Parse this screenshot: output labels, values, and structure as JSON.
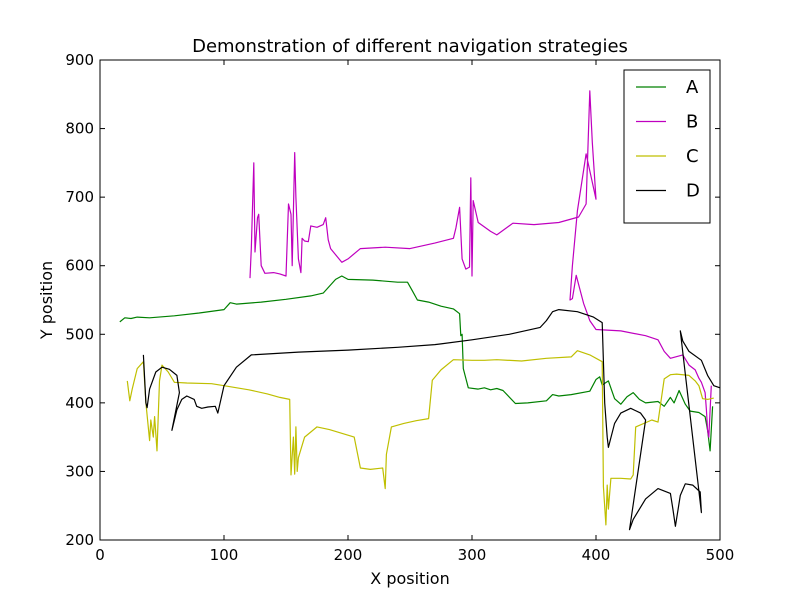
{
  "chart_data": {
    "type": "line",
    "title": "Demonstration of different navigation strategies",
    "xlabel": "X position",
    "ylabel": "Y position",
    "xlim": [
      0,
      500
    ],
    "ylim": [
      200,
      900
    ],
    "xticks": [
      0,
      100,
      200,
      300,
      400,
      500
    ],
    "yticks": [
      200,
      300,
      400,
      500,
      600,
      700,
      800,
      900
    ],
    "grid": false,
    "legend_position": "top-right",
    "series": [
      {
        "name": "A",
        "color": "#008000",
        "points": [
          [
            16,
            518
          ],
          [
            20,
            524
          ],
          [
            25,
            523
          ],
          [
            30,
            525
          ],
          [
            40,
            524
          ],
          [
            60,
            527
          ],
          [
            80,
            531
          ],
          [
            100,
            536
          ],
          [
            105,
            546
          ],
          [
            110,
            544
          ],
          [
            130,
            547
          ],
          [
            150,
            551
          ],
          [
            170,
            556
          ],
          [
            180,
            560
          ],
          [
            190,
            580
          ],
          [
            195,
            585
          ],
          [
            200,
            580
          ],
          [
            220,
            579
          ],
          [
            240,
            576
          ],
          [
            248,
            576
          ],
          [
            252,
            563
          ],
          [
            256,
            550
          ],
          [
            265,
            547
          ],
          [
            275,
            541
          ],
          [
            285,
            537
          ],
          [
            290,
            530
          ],
          [
            291,
            498
          ],
          [
            292,
            500
          ],
          [
            293,
            450
          ],
          [
            297,
            422
          ],
          [
            305,
            420
          ],
          [
            310,
            422
          ],
          [
            315,
            419
          ],
          [
            320,
            421
          ],
          [
            325,
            418
          ],
          [
            335,
            399
          ],
          [
            345,
            400
          ],
          [
            360,
            403
          ],
          [
            365,
            412
          ],
          [
            370,
            410
          ],
          [
            380,
            412
          ],
          [
            395,
            417
          ],
          [
            400,
            434
          ],
          [
            403,
            438
          ],
          [
            405,
            426
          ],
          [
            410,
            432
          ],
          [
            415,
            406
          ],
          [
            420,
            398
          ],
          [
            425,
            409
          ],
          [
            430,
            415
          ],
          [
            435,
            405
          ],
          [
            440,
            400
          ],
          [
            450,
            402
          ],
          [
            455,
            395
          ],
          [
            460,
            408
          ],
          [
            463,
            400
          ],
          [
            467,
            418
          ],
          [
            472,
            398
          ],
          [
            476,
            388
          ],
          [
            483,
            386
          ],
          [
            488,
            380
          ],
          [
            490,
            360
          ],
          [
            492,
            330
          ],
          [
            494,
            395
          ]
        ]
      },
      {
        "name": "B",
        "color": "#bf00bf",
        "points": [
          [
            121,
            582
          ],
          [
            122,
            625
          ],
          [
            124,
            750
          ],
          [
            125,
            620
          ],
          [
            127,
            670
          ],
          [
            128,
            675
          ],
          [
            130,
            600
          ],
          [
            133,
            589
          ],
          [
            140,
            590
          ],
          [
            145,
            588
          ],
          [
            150,
            585
          ],
          [
            152,
            690
          ],
          [
            154,
            675
          ],
          [
            155,
            600
          ],
          [
            157,
            765
          ],
          [
            158,
            700
          ],
          [
            160,
            610
          ],
          [
            162,
            590
          ],
          [
            163,
            640
          ],
          [
            165,
            636
          ],
          [
            168,
            635
          ],
          [
            170,
            658
          ],
          [
            175,
            656
          ],
          [
            180,
            660
          ],
          [
            182,
            670
          ],
          [
            184,
            638
          ],
          [
            186,
            625
          ],
          [
            195,
            605
          ],
          [
            200,
            610
          ],
          [
            210,
            625
          ],
          [
            230,
            627
          ],
          [
            250,
            625
          ],
          [
            270,
            633
          ],
          [
            285,
            640
          ],
          [
            287,
            655
          ],
          [
            290,
            685
          ],
          [
            292,
            610
          ],
          [
            295,
            595
          ],
          [
            298,
            598
          ],
          [
            299,
            728
          ],
          [
            300,
            585
          ],
          [
            301,
            695
          ],
          [
            305,
            663
          ],
          [
            315,
            650
          ],
          [
            320,
            645
          ],
          [
            330,
            658
          ],
          [
            333,
            662
          ],
          [
            350,
            660
          ],
          [
            370,
            663
          ],
          [
            386,
            671
          ],
          [
            392,
            690
          ],
          [
            395,
            855
          ],
          [
            397,
            780
          ],
          [
            400,
            697
          ],
          [
            392,
            763
          ],
          [
            385,
            680
          ],
          [
            381,
            600
          ],
          [
            379,
            550
          ],
          [
            381,
            552
          ],
          [
            384,
            586
          ],
          [
            390,
            545
          ],
          [
            395,
            520
          ],
          [
            400,
            507
          ],
          [
            420,
            505
          ],
          [
            440,
            498
          ],
          [
            450,
            492
          ],
          [
            455,
            475
          ],
          [
            460,
            465
          ],
          [
            470,
            470
          ],
          [
            475,
            455
          ],
          [
            480,
            448
          ],
          [
            483,
            436
          ],
          [
            485,
            430
          ],
          [
            488,
            415
          ],
          [
            489,
            390
          ],
          [
            490,
            360
          ],
          [
            491,
            350
          ],
          [
            493,
            425
          ]
        ]
      },
      {
        "name": "C",
        "color": "#bfbf00",
        "points": [
          [
            22,
            432
          ],
          [
            24,
            403
          ],
          [
            26,
            420
          ],
          [
            30,
            450
          ],
          [
            35,
            460
          ],
          [
            37,
            400
          ],
          [
            40,
            345
          ],
          [
            41,
            375
          ],
          [
            43,
            350
          ],
          [
            44,
            380
          ],
          [
            46,
            330
          ],
          [
            48,
            432
          ],
          [
            50,
            455
          ],
          [
            55,
            445
          ],
          [
            60,
            430
          ],
          [
            70,
            429
          ],
          [
            90,
            428
          ],
          [
            100,
            425
          ],
          [
            120,
            419
          ],
          [
            135,
            413
          ],
          [
            145,
            408
          ],
          [
            153,
            405
          ],
          [
            154,
            295
          ],
          [
            156,
            350
          ],
          [
            157,
            296
          ],
          [
            158,
            365
          ],
          [
            159,
            300
          ],
          [
            160,
            320
          ],
          [
            165,
            350
          ],
          [
            175,
            365
          ],
          [
            185,
            361
          ],
          [
            205,
            350
          ],
          [
            210,
            305
          ],
          [
            218,
            303
          ],
          [
            228,
            305
          ],
          [
            230,
            275
          ],
          [
            231,
            325
          ],
          [
            235,
            365
          ],
          [
            245,
            370
          ],
          [
            255,
            374
          ],
          [
            265,
            377
          ],
          [
            268,
            433
          ],
          [
            275,
            448
          ],
          [
            285,
            463
          ],
          [
            300,
            462
          ],
          [
            310,
            462
          ],
          [
            320,
            463
          ],
          [
            340,
            461
          ],
          [
            360,
            465
          ],
          [
            380,
            467
          ],
          [
            385,
            476
          ],
          [
            395,
            470
          ],
          [
            405,
            460
          ],
          [
            406,
            278
          ],
          [
            408,
            222
          ],
          [
            409,
            280
          ],
          [
            410,
            245
          ],
          [
            412,
            290
          ],
          [
            420,
            290
          ],
          [
            428,
            289
          ],
          [
            430,
            295
          ],
          [
            432,
            365
          ],
          [
            445,
            375
          ],
          [
            450,
            372
          ],
          [
            455,
            435
          ],
          [
            460,
            441
          ],
          [
            465,
            442
          ],
          [
            475,
            440
          ],
          [
            480,
            432
          ],
          [
            483,
            425
          ],
          [
            486,
            406
          ],
          [
            490,
            405
          ],
          [
            495,
            407
          ]
        ]
      },
      {
        "name": "D",
        "color": "#000000",
        "points": [
          [
            35,
            470
          ],
          [
            37,
            400
          ],
          [
            38,
            393
          ],
          [
            40,
            420
          ],
          [
            45,
            445
          ],
          [
            50,
            452
          ],
          [
            56,
            449
          ],
          [
            62,
            440
          ],
          [
            64,
            415
          ],
          [
            58,
            360
          ],
          [
            62,
            390
          ],
          [
            66,
            405
          ],
          [
            70,
            410
          ],
          [
            76,
            405
          ],
          [
            78,
            395
          ],
          [
            82,
            392
          ],
          [
            87,
            394
          ],
          [
            93,
            395
          ],
          [
            95,
            385
          ],
          [
            100,
            425
          ],
          [
            110,
            452
          ],
          [
            122,
            470
          ],
          [
            160,
            474
          ],
          [
            200,
            477
          ],
          [
            240,
            481
          ],
          [
            270,
            485
          ],
          [
            275,
            486
          ],
          [
            300,
            492
          ],
          [
            330,
            500
          ],
          [
            355,
            510
          ],
          [
            360,
            520
          ],
          [
            365,
            533
          ],
          [
            370,
            536
          ],
          [
            385,
            533
          ],
          [
            398,
            525
          ],
          [
            405,
            517
          ],
          [
            407,
            400
          ],
          [
            409,
            350
          ],
          [
            410,
            335
          ],
          [
            415,
            370
          ],
          [
            420,
            385
          ],
          [
            428,
            392
          ],
          [
            436,
            385
          ],
          [
            440,
            375
          ],
          [
            427,
            215
          ],
          [
            430,
            230
          ],
          [
            440,
            260
          ],
          [
            450,
            275
          ],
          [
            460,
            268
          ],
          [
            462,
            245
          ],
          [
            464,
            220
          ],
          [
            468,
            265
          ],
          [
            472,
            282
          ],
          [
            478,
            280
          ],
          [
            484,
            270
          ],
          [
            485,
            240
          ],
          [
            468,
            505
          ],
          [
            470,
            490
          ],
          [
            475,
            475
          ],
          [
            485,
            462
          ],
          [
            490,
            440
          ],
          [
            495,
            425
          ],
          [
            500,
            422
          ]
        ]
      }
    ]
  }
}
